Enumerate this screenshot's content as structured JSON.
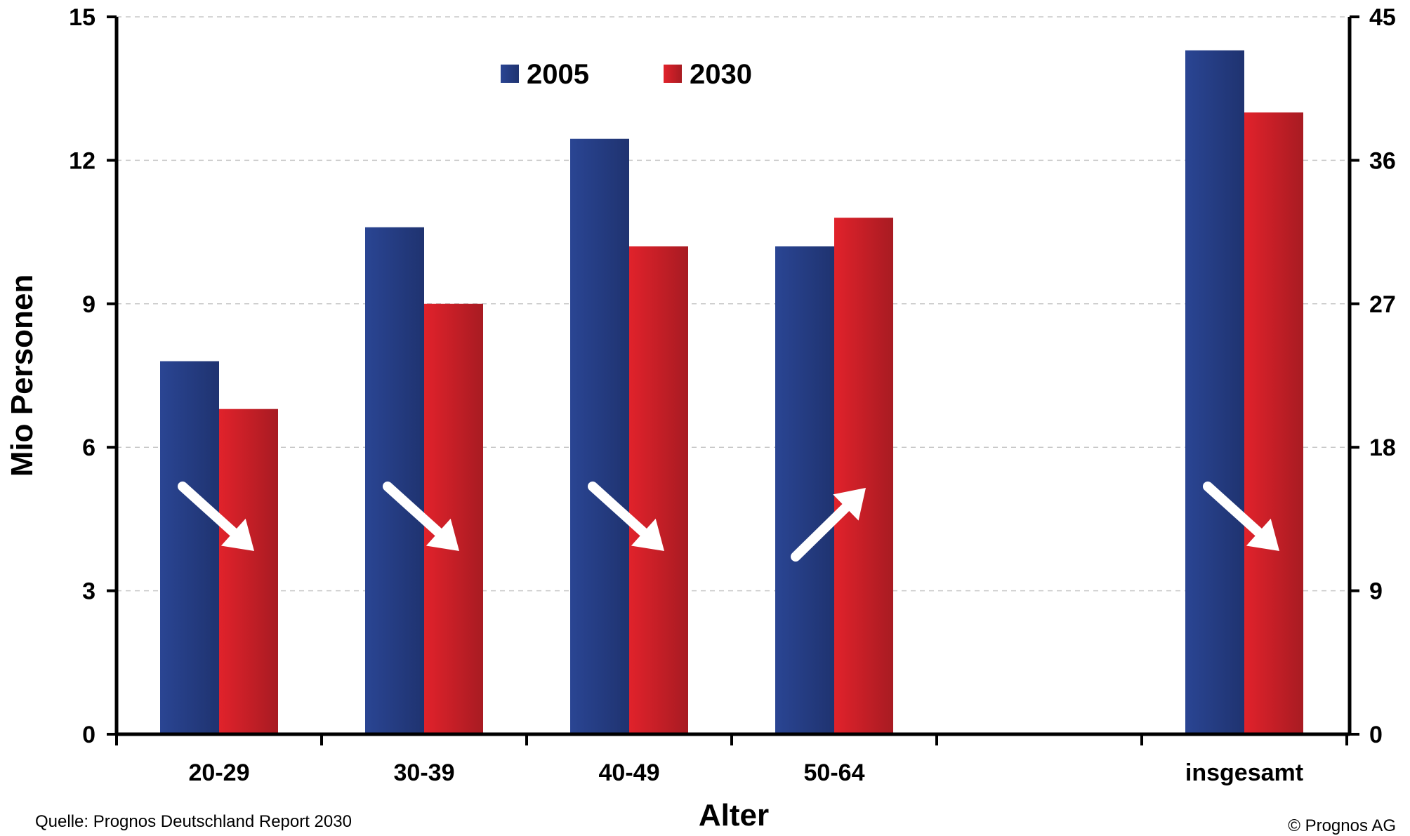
{
  "chart_data": {
    "type": "bar",
    "categories": [
      "20-29",
      "30-39",
      "40-49",
      "50-64",
      "insgesamt"
    ],
    "series": [
      {
        "name": "2005",
        "values": [
          7.8,
          10.6,
          12.45,
          10.2,
          42.9
        ],
        "color": "#253f86",
        "axis": [
          "left",
          "left",
          "left",
          "left",
          "right"
        ]
      },
      {
        "name": "2030",
        "values": [
          6.8,
          9.0,
          10.2,
          10.8,
          39.0
        ],
        "color": "#d42128",
        "axis": [
          "left",
          "left",
          "left",
          "left",
          "right"
        ]
      }
    ],
    "trend_arrows": [
      "down",
      "down",
      "down",
      "up",
      "down"
    ],
    "xlabel": "Alter",
    "ylabel": "Mio Personen",
    "ylim": [
      0,
      15
    ],
    "y_ticks": [
      "0",
      "3",
      "6",
      "9",
      "12",
      "15"
    ],
    "y2lim": [
      0,
      45
    ],
    "y2_ticks": [
      "0",
      "9",
      "18",
      "27",
      "36",
      "45"
    ],
    "grid": "horizontal dashed",
    "legend_position": "top-center"
  },
  "source": "Quelle: Prognos Deutschland Report  2030",
  "copyright": "© Prognos AG"
}
